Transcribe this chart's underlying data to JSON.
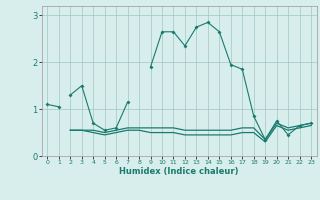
{
  "xlabel": "Humidex (Indice chaleur)",
  "x_values": [
    0,
    1,
    2,
    3,
    4,
    5,
    6,
    7,
    8,
    9,
    10,
    11,
    12,
    13,
    14,
    15,
    16,
    17,
    18,
    19,
    20,
    21,
    22,
    23
  ],
  "short_line": [
    1.1,
    1.05
  ],
  "main_line": [
    null,
    null,
    1.3,
    1.5,
    0.7,
    0.55,
    0.6,
    1.15,
    null,
    1.9,
    2.65,
    2.65,
    2.35,
    2.75,
    2.85,
    2.65,
    1.95,
    1.85,
    0.85,
    0.35,
    0.75,
    0.45,
    0.65,
    0.7
  ],
  "flat_line1": [
    null,
    null,
    0.55,
    0.55,
    0.55,
    0.5,
    0.55,
    0.6,
    0.6,
    0.6,
    0.6,
    0.6,
    0.55,
    0.55,
    0.55,
    0.55,
    0.55,
    0.6,
    0.6,
    0.35,
    0.7,
    0.6,
    0.65,
    0.7
  ],
  "flat_line2": [
    null,
    null,
    0.55,
    0.55,
    0.5,
    0.45,
    0.5,
    0.55,
    0.55,
    0.5,
    0.5,
    0.5,
    0.45,
    0.45,
    0.45,
    0.45,
    0.45,
    0.5,
    0.5,
    0.3,
    0.65,
    0.55,
    0.6,
    0.65
  ],
  "line_color": "#1a7a6e",
  "bg_color": "#d8eeec",
  "grid_color": "#a0c8c4",
  "ylim": [
    0,
    3.2
  ],
  "xlim": [
    -0.5,
    23.5
  ],
  "yticks": [
    0,
    1,
    2,
    3
  ],
  "xticks": [
    0,
    1,
    2,
    3,
    4,
    5,
    6,
    7,
    8,
    9,
    10,
    11,
    12,
    13,
    14,
    15,
    16,
    17,
    18,
    19,
    20,
    21,
    22,
    23
  ],
  "xtick_labels": [
    "0",
    "1",
    "2",
    "3",
    "4",
    "5",
    "6",
    "7",
    "8",
    "9",
    "10",
    "11",
    "12",
    "13",
    "14",
    "15",
    "16",
    "17",
    "18",
    "19",
    "20",
    "21",
    "22",
    "23"
  ]
}
